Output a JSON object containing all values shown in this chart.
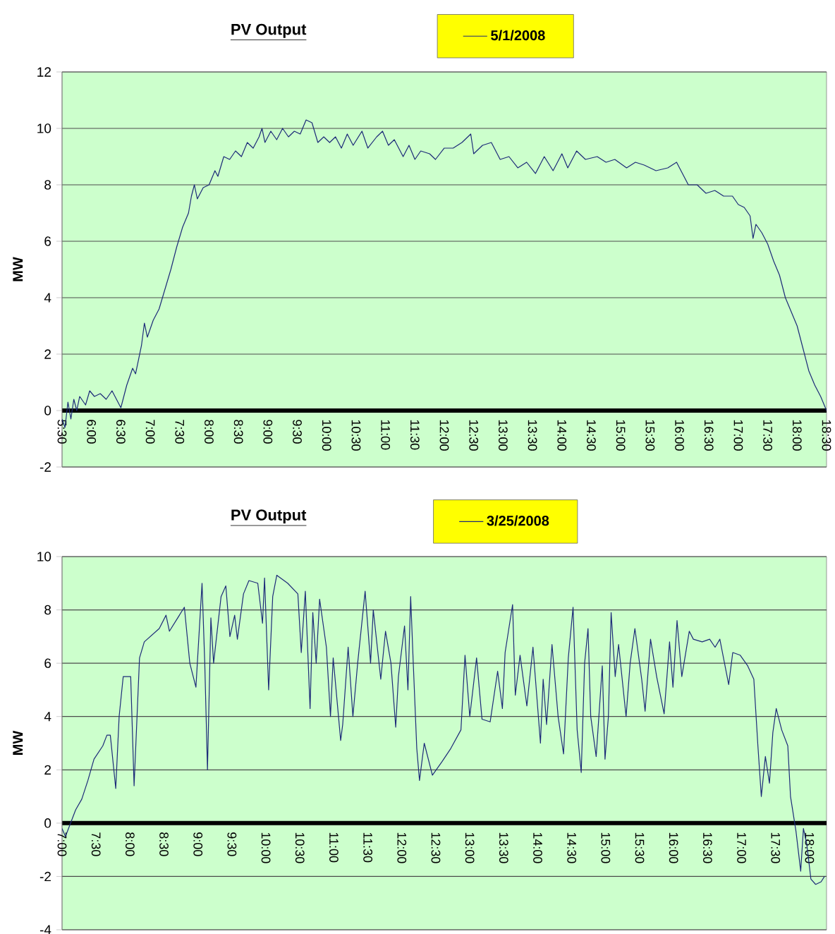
{
  "chart_data": [
    {
      "type": "line",
      "title": "PV Output",
      "ylabel": "MW",
      "legend": "top",
      "grid": "y",
      "xlim": [
        5.5,
        18.5
      ],
      "ylim": [
        -2,
        12
      ],
      "yticks": [
        -2,
        0,
        2,
        4,
        6,
        8,
        10,
        12
      ],
      "xticks": [
        {
          "value": 5.5,
          "label": "5:30"
        },
        {
          "value": 6,
          "label": "6:00"
        },
        {
          "value": 6.5,
          "label": "6:30"
        },
        {
          "value": 7,
          "label": "7:00"
        },
        {
          "value": 7.5,
          "label": "7:30"
        },
        {
          "value": 8,
          "label": "8:00"
        },
        {
          "value": 8.5,
          "label": "8:30"
        },
        {
          "value": 9,
          "label": "9:00"
        },
        {
          "value": 9.5,
          "label": "9:30"
        },
        {
          "value": 10,
          "label": "10:00"
        },
        {
          "value": 10.5,
          "label": "10:30"
        },
        {
          "value": 11,
          "label": "11:00"
        },
        {
          "value": 11.5,
          "label": "11:30"
        },
        {
          "value": 12,
          "label": "12:00"
        },
        {
          "value": 12.5,
          "label": "12:30"
        },
        {
          "value": 13,
          "label": "13:00"
        },
        {
          "value": 13.5,
          "label": "13:30"
        },
        {
          "value": 14,
          "label": "14:00"
        },
        {
          "value": 14.5,
          "label": "14:30"
        },
        {
          "value": 15,
          "label": "15:00"
        },
        {
          "value": 15.5,
          "label": "15:30"
        },
        {
          "value": 16,
          "label": "16:00"
        },
        {
          "value": 16.5,
          "label": "16:30"
        },
        {
          "value": 17,
          "label": "17:00"
        },
        {
          "value": 17.5,
          "label": "17:30"
        },
        {
          "value": 18,
          "label": "18:00"
        },
        {
          "value": 18.5,
          "label": "18:30"
        }
      ],
      "series": [
        {
          "name": "5/1/2008",
          "color": "#1c2a78",
          "x": [
            5.5,
            5.55,
            5.6,
            5.65,
            5.7,
            5.75,
            5.8,
            5.9,
            5.97,
            6.05,
            6.15,
            6.25,
            6.35,
            6.45,
            6.5,
            6.6,
            6.7,
            6.75,
            6.85,
            6.9,
            6.95,
            7.05,
            7.15,
            7.25,
            7.35,
            7.45,
            7.55,
            7.65,
            7.7,
            7.75,
            7.8,
            7.9,
            8.0,
            8.1,
            8.15,
            8.25,
            8.35,
            8.45,
            8.55,
            8.65,
            8.75,
            8.85,
            8.9,
            8.95,
            9.05,
            9.15,
            9.25,
            9.35,
            9.45,
            9.55,
            9.65,
            9.75,
            9.85,
            9.95,
            10.05,
            10.15,
            10.25,
            10.35,
            10.45,
            10.6,
            10.7,
            10.85,
            10.95,
            11.05,
            11.15,
            11.3,
            11.4,
            11.5,
            11.6,
            11.75,
            11.85,
            12.0,
            12.15,
            12.3,
            12.45,
            12.5,
            12.65,
            12.8,
            12.95,
            13.1,
            13.25,
            13.4,
            13.55,
            13.7,
            13.85,
            14.0,
            14.1,
            14.25,
            14.4,
            14.6,
            14.75,
            14.9,
            15.1,
            15.25,
            15.4,
            15.6,
            15.8,
            15.95,
            16.05,
            16.15,
            16.3,
            16.45,
            16.6,
            16.75,
            16.9,
            17.0,
            17.1,
            17.2,
            17.25,
            17.3,
            17.4,
            17.5,
            17.6,
            17.7,
            17.8,
            17.9,
            18.0,
            18.1,
            18.2,
            18.3,
            18.4,
            18.5
          ],
          "values": [
            -0.3,
            -0.6,
            0.3,
            -0.3,
            0.4,
            0.0,
            0.5,
            0.2,
            0.7,
            0.5,
            0.6,
            0.4,
            0.7,
            0.3,
            0.1,
            0.9,
            1.5,
            1.3,
            2.3,
            3.1,
            2.6,
            3.2,
            3.6,
            4.3,
            5.0,
            5.8,
            6.5,
            7.0,
            7.6,
            8.0,
            7.5,
            7.9,
            8.0,
            8.5,
            8.3,
            9.0,
            8.9,
            9.2,
            9.0,
            9.5,
            9.3,
            9.7,
            10.0,
            9.5,
            9.9,
            9.6,
            10.0,
            9.7,
            9.9,
            9.8,
            10.3,
            10.2,
            9.5,
            9.7,
            9.5,
            9.7,
            9.3,
            9.8,
            9.4,
            9.9,
            9.3,
            9.7,
            9.9,
            9.4,
            9.6,
            9.0,
            9.4,
            8.9,
            9.2,
            9.1,
            8.9,
            9.3,
            9.3,
            9.5,
            9.8,
            9.1,
            9.4,
            9.5,
            8.9,
            9.0,
            8.6,
            8.8,
            8.4,
            9.0,
            8.5,
            9.1,
            8.6,
            9.2,
            8.9,
            9.0,
            8.8,
            8.9,
            8.6,
            8.8,
            8.7,
            8.5,
            8.6,
            8.8,
            8.4,
            8.0,
            8.0,
            7.7,
            7.8,
            7.6,
            7.6,
            7.3,
            7.2,
            6.9,
            6.1,
            6.6,
            6.3,
            5.9,
            5.3,
            4.8,
            4.0,
            3.5,
            3.0,
            2.2,
            1.4,
            0.9,
            0.5,
            0.0
          ]
        }
      ]
    },
    {
      "type": "line",
      "title": "PV Output",
      "ylabel": "MW",
      "legend": "top",
      "grid": "y",
      "xlim": [
        7,
        18.25
      ],
      "ylim": [
        -4,
        10
      ],
      "yticks": [
        -4,
        -2,
        0,
        2,
        4,
        6,
        8,
        10
      ],
      "xticks": [
        {
          "value": 7,
          "label": "7:00"
        },
        {
          "value": 7.5,
          "label": "7:30"
        },
        {
          "value": 8,
          "label": "8:00"
        },
        {
          "value": 8.5,
          "label": "8:30"
        },
        {
          "value": 9,
          "label": "9:00"
        },
        {
          "value": 9.5,
          "label": "9:30"
        },
        {
          "value": 10,
          "label": "10:00"
        },
        {
          "value": 10.5,
          "label": "10:30"
        },
        {
          "value": 11,
          "label": "11:00"
        },
        {
          "value": 11.5,
          "label": "11:30"
        },
        {
          "value": 12,
          "label": "12:00"
        },
        {
          "value": 12.5,
          "label": "12:30"
        },
        {
          "value": 13,
          "label": "13:00"
        },
        {
          "value": 13.5,
          "label": "13:30"
        },
        {
          "value": 14,
          "label": "14:00"
        },
        {
          "value": 14.5,
          "label": "14:30"
        },
        {
          "value": 15,
          "label": "15:00"
        },
        {
          "value": 15.5,
          "label": "15:30"
        },
        {
          "value": 16,
          "label": "16:00"
        },
        {
          "value": 16.5,
          "label": "16:30"
        },
        {
          "value": 17,
          "label": "17:00"
        },
        {
          "value": 17.5,
          "label": "17:30"
        },
        {
          "value": 18,
          "label": "18:00"
        }
      ],
      "series": [
        {
          "name": "3/25/2008",
          "color": "#1c2a78",
          "x": [
            7.0,
            7.05,
            7.2,
            7.29,
            7.38,
            7.47,
            7.6,
            7.66,
            7.71,
            7.79,
            7.84,
            7.9,
            8.01,
            8.06,
            8.14,
            8.21,
            8.43,
            8.53,
            8.58,
            8.8,
            8.88,
            8.97,
            9.06,
            9.1,
            9.14,
            9.19,
            9.23,
            9.34,
            9.41,
            9.47,
            9.54,
            9.58,
            9.67,
            9.75,
            9.88,
            9.95,
            9.98,
            10.04,
            10.1,
            10.16,
            10.32,
            10.47,
            10.52,
            10.58,
            10.65,
            10.69,
            10.74,
            10.79,
            10.89,
            10.95,
            10.99,
            11.1,
            11.13,
            11.21,
            11.28,
            11.35,
            11.46,
            11.54,
            11.58,
            11.69,
            11.76,
            11.84,
            11.91,
            11.95,
            12.04,
            12.09,
            12.13,
            12.17,
            12.22,
            12.26,
            12.33,
            12.45,
            12.59,
            12.72,
            12.87,
            12.93,
            13.0,
            13.1,
            13.18,
            13.3,
            13.41,
            13.48,
            13.52,
            13.63,
            13.67,
            13.74,
            13.84,
            13.93,
            14.04,
            14.08,
            14.13,
            14.21,
            14.3,
            14.38,
            14.45,
            14.52,
            14.58,
            14.64,
            14.69,
            14.74,
            14.78,
            14.86,
            14.95,
            14.99,
            15.04,
            15.08,
            15.14,
            15.19,
            15.3,
            15.36,
            15.43,
            15.53,
            15.58,
            15.66,
            15.75,
            15.86,
            15.94,
            15.99,
            16.05,
            16.12,
            16.23,
            16.29,
            16.42,
            16.53,
            16.61,
            16.68,
            16.81,
            16.87,
            16.98,
            17.09,
            17.18,
            17.24,
            17.29,
            17.35,
            17.41,
            17.46,
            17.51,
            17.59,
            17.68,
            17.72,
            17.8,
            17.87,
            17.91,
            17.96,
            18.02,
            18.09,
            18.17,
            18.22
          ],
          "values": [
            -0.2,
            -0.5,
            0.5,
            0.9,
            1.6,
            2.4,
            2.9,
            3.3,
            3.3,
            1.3,
            4.0,
            5.5,
            5.5,
            1.4,
            6.2,
            6.8,
            7.3,
            7.8,
            7.2,
            8.1,
            6.0,
            5.1,
            9.0,
            6.0,
            2.0,
            7.7,
            6.0,
            8.5,
            8.9,
            7.0,
            7.8,
            6.9,
            8.6,
            9.1,
            9.0,
            7.5,
            9.2,
            5.0,
            8.5,
            9.3,
            9.0,
            8.6,
            6.4,
            8.7,
            4.3,
            7.9,
            6.0,
            8.4,
            6.6,
            4.0,
            6.2,
            3.1,
            3.7,
            6.6,
            4.0,
            6.0,
            8.7,
            6.0,
            8.0,
            5.4,
            7.2,
            6.0,
            3.6,
            5.5,
            7.4,
            5.0,
            8.5,
            5.9,
            2.8,
            1.6,
            3.0,
            1.8,
            2.3,
            2.8,
            3.5,
            6.3,
            4.0,
            6.2,
            3.9,
            3.8,
            5.7,
            4.3,
            6.4,
            8.2,
            4.8,
            6.3,
            4.4,
            6.6,
            3.0,
            5.4,
            3.7,
            6.7,
            4.0,
            2.6,
            6.2,
            8.1,
            3.5,
            1.9,
            6.0,
            7.3,
            4.0,
            2.5,
            5.9,
            2.4,
            4.0,
            7.9,
            5.5,
            6.7,
            4.0,
            6.0,
            7.3,
            5.4,
            4.2,
            6.9,
            5.5,
            4.1,
            6.8,
            5.1,
            7.6,
            5.5,
            7.2,
            6.9,
            6.8,
            6.9,
            6.6,
            6.9,
            5.2,
            6.4,
            6.3,
            5.9,
            5.4,
            2.9,
            1.0,
            2.5,
            1.5,
            3.4,
            4.3,
            3.5,
            2.9,
            1.0,
            -0.3,
            -1.8,
            -0.2,
            -0.8,
            -2.1,
            -2.3,
            -2.2,
            -2.0
          ]
        }
      ]
    }
  ]
}
